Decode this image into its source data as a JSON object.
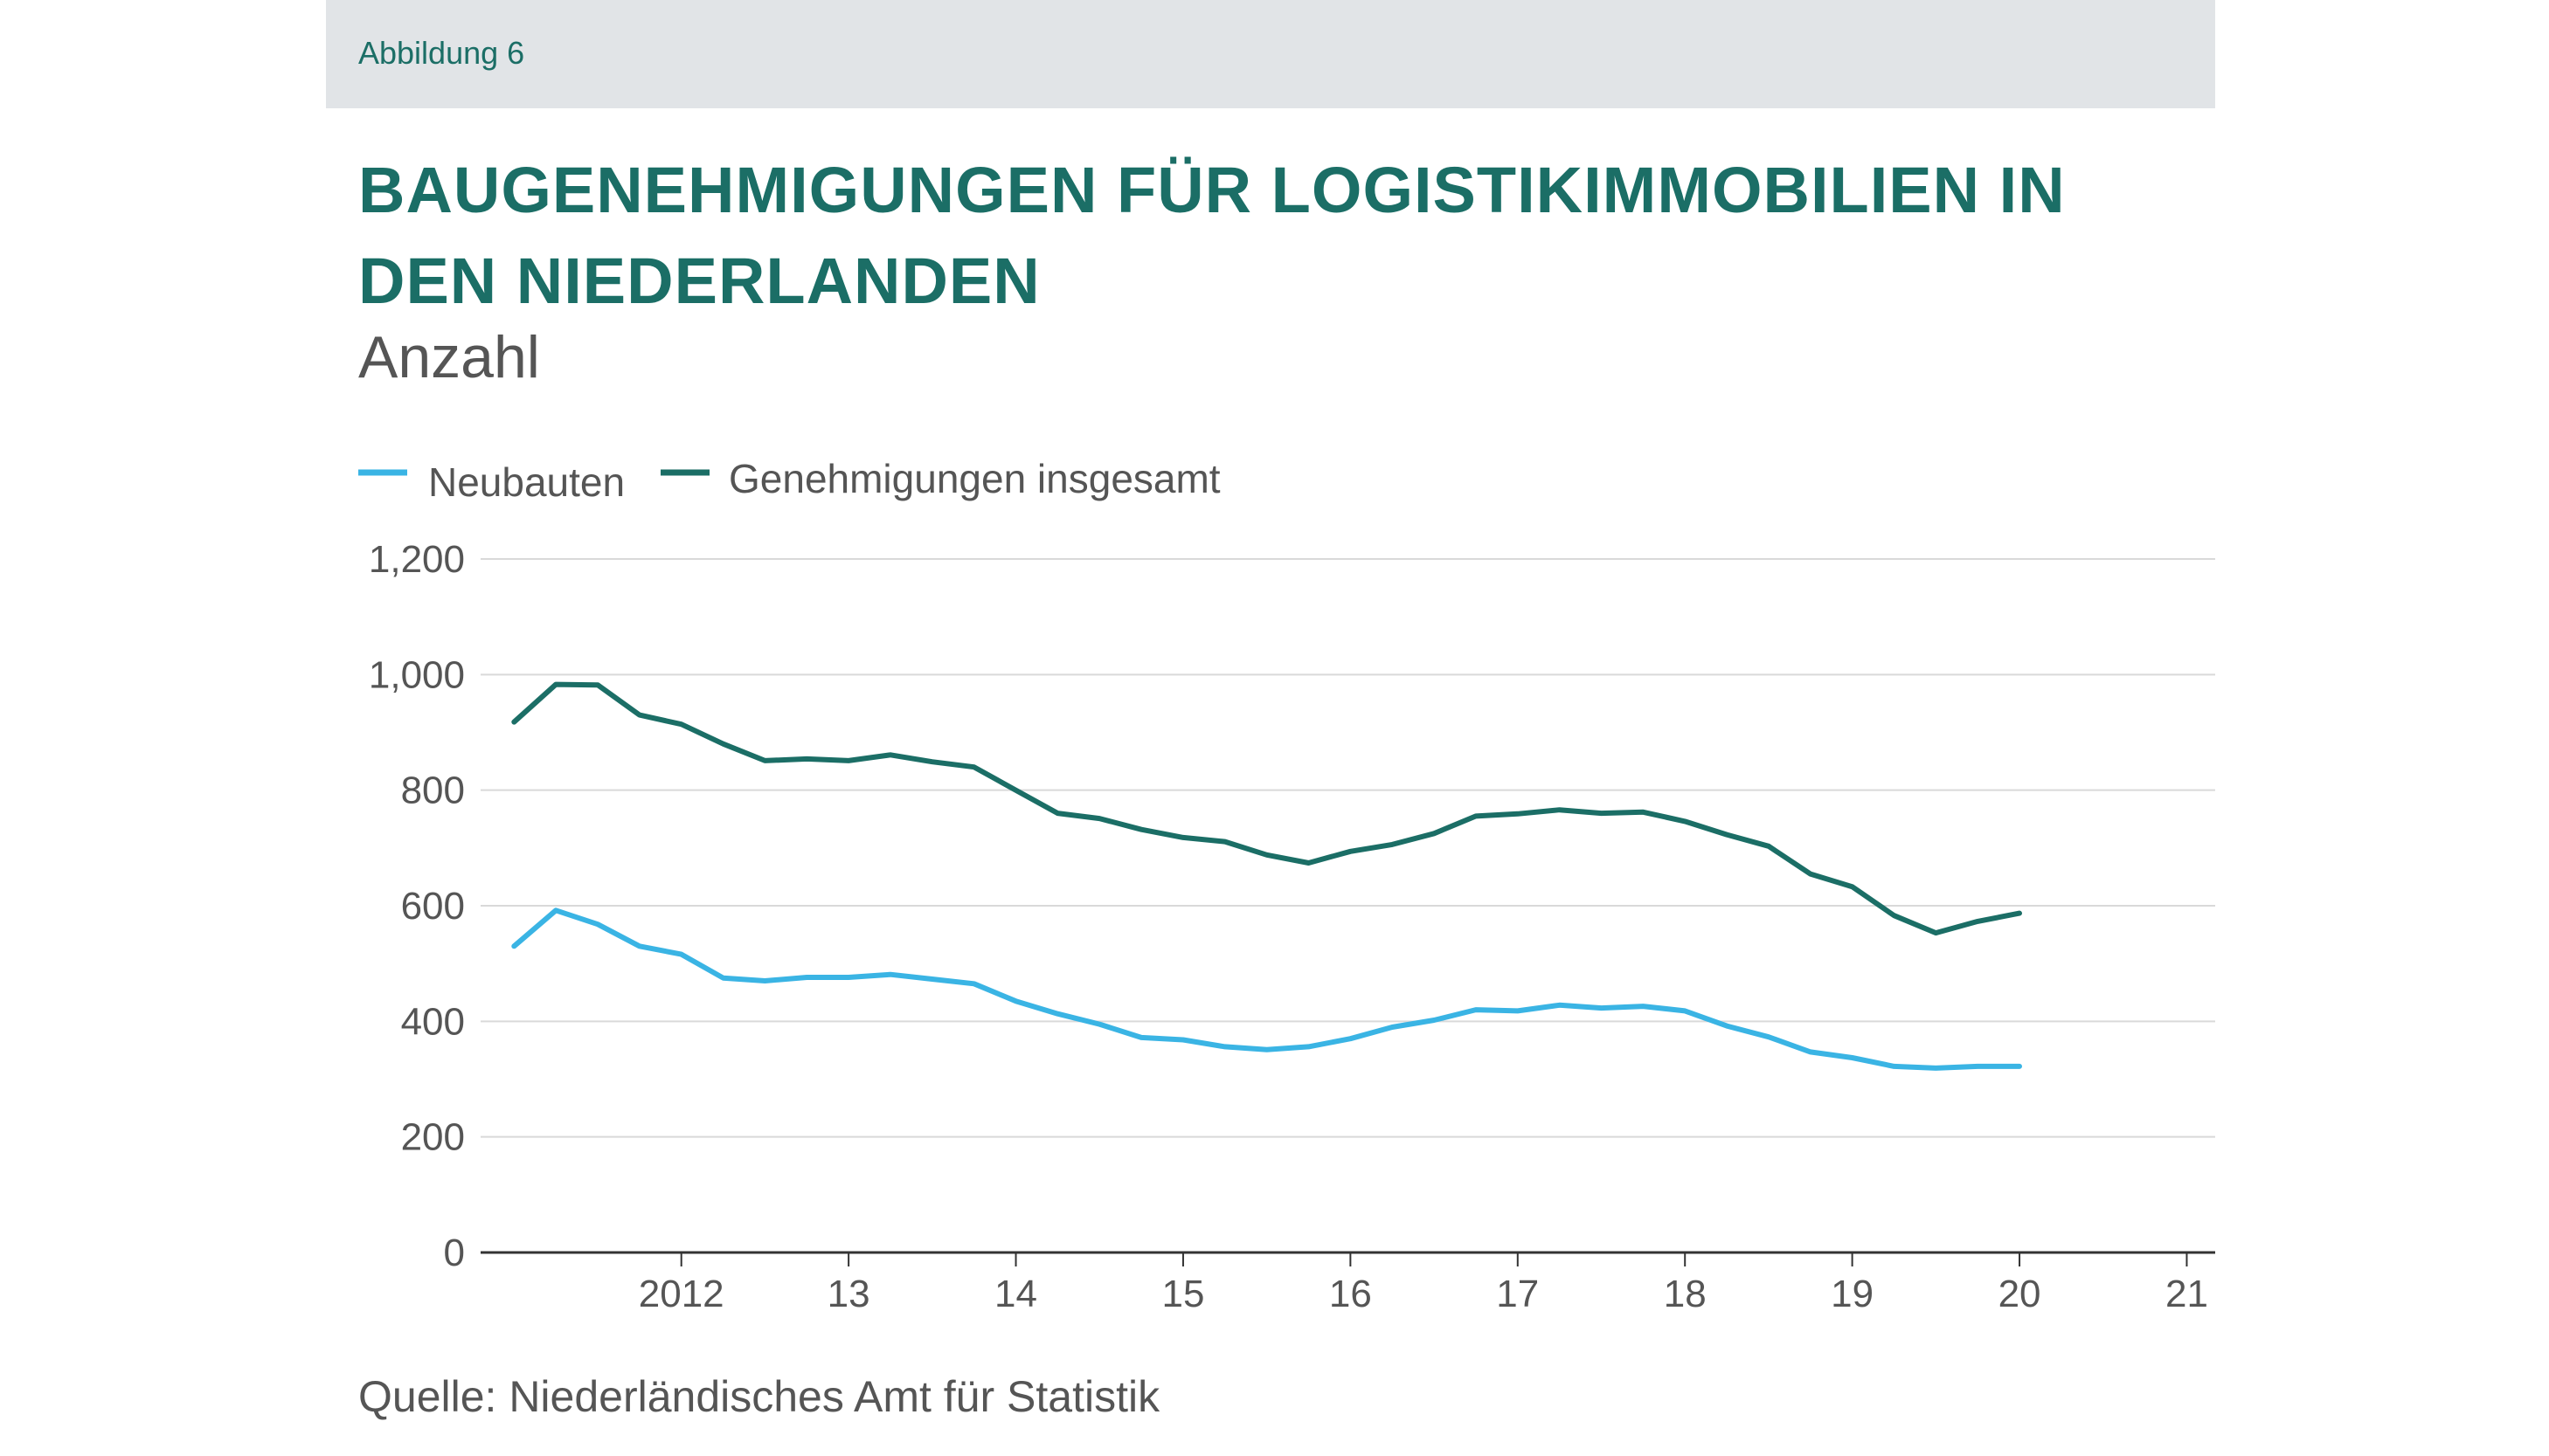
{
  "header": {
    "figure_label": "Abbildung 6",
    "title": "BAUGENEHMIGUNGEN FÜR LOGISTIKIMMOBILIEN IN DEN NIEDERLANDEN",
    "subtitle": "Anzahl"
  },
  "footer": {
    "source": "Quelle: Niederländisches Amt für Statistik"
  },
  "colors": {
    "accent": "#1b6e66",
    "neubauten": "#3ab4e4",
    "gesamt": "#1b6e66",
    "grid": "#d9d9d9",
    "topbar": "#e1e4e7"
  },
  "chart_data": {
    "type": "line",
    "title": "BAUGENEHMIGUNGEN FÜR LOGISTIKIMMOBILIEN IN DEN NIEDERLANDEN",
    "ylabel": "Anzahl",
    "xlabel": "",
    "ylim": [
      0,
      1200
    ],
    "yticks": [
      "0",
      "200",
      "400",
      "600",
      "800",
      "1,000",
      "1,200"
    ],
    "ytick_values": [
      0,
      200,
      400,
      600,
      800,
      1000,
      1200
    ],
    "x_start": 2011.0,
    "x_step": 0.25,
    "xlim": [
      2010.8,
      2021.17
    ],
    "xticks": [
      {
        "label": "2012",
        "value": 2012
      },
      {
        "label": "13",
        "value": 2013
      },
      {
        "label": "14",
        "value": 2014
      },
      {
        "label": "15",
        "value": 2015
      },
      {
        "label": "16",
        "value": 2016
      },
      {
        "label": "17",
        "value": 2017
      },
      {
        "label": "18",
        "value": 2018
      },
      {
        "label": "19",
        "value": 2019
      },
      {
        "label": "20",
        "value": 2020
      },
      {
        "label": "21",
        "value": 2021
      }
    ],
    "grid": true,
    "legend_position": "top-left",
    "series": [
      {
        "name": "Neubauten",
        "values": [
          530,
          592,
          568,
          530,
          516,
          475,
          470,
          476,
          476,
          481,
          473,
          465,
          435,
          413,
          395,
          372,
          368,
          356,
          351,
          356,
          370,
          390,
          402,
          420,
          418,
          428,
          423,
          426,
          418,
          392,
          373,
          347,
          337,
          322,
          319,
          322,
          322
        ]
      },
      {
        "name": "Genehmigungen insgesamt",
        "values": [
          918,
          983,
          982,
          930,
          914,
          880,
          851,
          854,
          851,
          861,
          849,
          840,
          800,
          760,
          751,
          732,
          718,
          711,
          688,
          674,
          694,
          706,
          725,
          755,
          759,
          766,
          760,
          762,
          746,
          723,
          703,
          655,
          633,
          583,
          553,
          573,
          587
        ]
      }
    ]
  }
}
